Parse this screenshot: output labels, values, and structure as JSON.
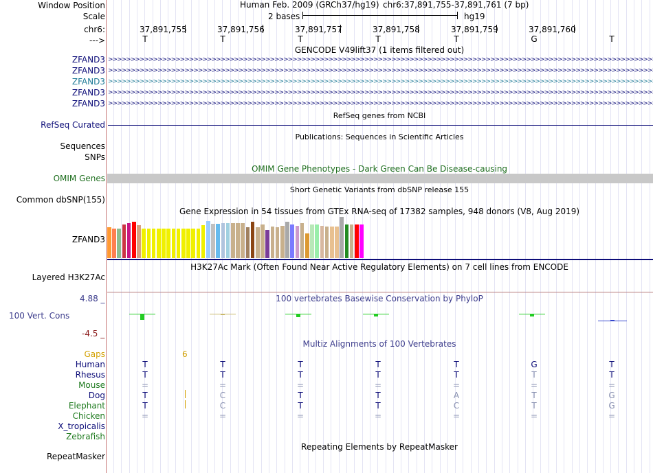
{
  "header": {
    "window_position_label": "Window Position",
    "scale_label": "Scale",
    "chr_label": "chr6:",
    "strand_label": "--->",
    "assembly_title": "Human Feb. 2009 (GRCh37/hg19)",
    "position": "chr6:37,891,755-37,891,761 (7 bp)",
    "scale_text": "2 bases",
    "db": "hg19"
  },
  "ruler": {
    "coords": [
      "37,891,755",
      "37,891,756",
      "37,891,757",
      "37,891,758",
      "37,891,759",
      "37,891,760"
    ]
  },
  "sequence": [
    "T",
    "T",
    "T",
    "T",
    "T",
    "G",
    "T"
  ],
  "tracks": {
    "gencode": {
      "title": "GENCODE V49lift37 (1 items filtered out)",
      "items": [
        "ZFAND3",
        "ZFAND3",
        "ZFAND3",
        "ZFAND3",
        "ZFAND3"
      ],
      "colors": [
        "#0c0c78",
        "#0c0c78",
        "#1e7a96",
        "#0c0c78",
        "#0c0c78"
      ]
    },
    "refseq": {
      "title": "RefSeq genes from NCBI",
      "label": "RefSeq Curated"
    },
    "publications": {
      "title": "Publications: Sequences in Scientific Articles",
      "labels": [
        "Sequences",
        "SNPs"
      ]
    },
    "omim": {
      "title": "OMIM Gene Phenotypes - Dark Green Can Be Disease-causing",
      "label": "OMIM Genes"
    },
    "dbsnp": {
      "title": "Short Genetic Variants from dbSNP release 155",
      "label": "Common dbSNP(155)"
    },
    "gtex": {
      "title": "Gene Expression in 54 tissues from GTEx RNA-seq of 17382 samples, 948 donors (V8, Aug 2019)",
      "label": "ZFAND3"
    },
    "h3k27ac": {
      "title": "H3K27Ac Mark (Often Found Near Active Regulatory Elements) on 7 cell lines from ENCODE",
      "label": "Layered H3K27Ac"
    },
    "phylop": {
      "title": "100 vertebrates Basewise Conservation by PhyloP",
      "label": "100 Vert. Cons",
      "max": "4.88 _",
      "min": "-4.5 _"
    },
    "multiz": {
      "title": "Multiz Alignments of 100 Vertebrates",
      "gaps_label": "Gaps",
      "gap_count": "6",
      "species": [
        {
          "name": "Human",
          "color": "#0c0c78",
          "bases": [
            "T",
            "T",
            "T",
            "T",
            "T",
            "G",
            "T"
          ]
        },
        {
          "name": "Rhesus",
          "color": "#0c0c78",
          "bases": [
            "T",
            "T",
            "T",
            "T",
            "T",
            "T",
            "T"
          ]
        },
        {
          "name": "Mouse",
          "color": "#1e7a1e",
          "bases": [
            "=",
            "=",
            "=",
            "=",
            "=",
            "=",
            "="
          ]
        },
        {
          "name": "Dog",
          "color": "#0c0c78",
          "bases": [
            "T",
            "C",
            "T",
            "T",
            "A",
            "T",
            "G"
          ]
        },
        {
          "name": "Elephant",
          "color": "#1e7a1e",
          "bases": [
            "T",
            "C",
            "T",
            "T",
            "C",
            "T",
            "G"
          ]
        },
        {
          "name": "Chicken",
          "color": "#1e7a1e",
          "bases": [
            "=",
            "=",
            "=",
            "=",
            "=",
            "=",
            "="
          ]
        },
        {
          "name": "X_tropicalis",
          "color": "#0c0c78",
          "bases": [
            "",
            "",
            "",
            "",
            "",
            "",
            ""
          ]
        },
        {
          "name": "Zebrafish",
          "color": "#1e7a1e",
          "bases": [
            "",
            "",
            "",
            "",
            "",
            "",
            ""
          ]
        }
      ]
    },
    "repeatmasker": {
      "title": "Repeating Elements by RepeatMasker",
      "label": "RepeatMasker"
    }
  },
  "colors": {
    "label_blue": "#0c0c78",
    "omim_green": "#1e6e1e",
    "phylop_blue": "#3c3c8c",
    "gaps_orange": "#d2a000",
    "divider_red": "#c87878"
  },
  "chart_data": {
    "type": "bar",
    "title": "Gene Expression in 54 tissues from GTEx RNA-seq of 17382 samples, 948 donors (V8, Aug 2019)",
    "colors": [
      "#ff9933",
      "#ff7f50",
      "#8fbc8f",
      "#cc3344",
      "#c71585",
      "#ff0000",
      "#d8a080",
      "#f0f000",
      "#f0f000",
      "#f0f000",
      "#f0f000",
      "#f0f000",
      "#f0f000",
      "#f0f000",
      "#f0f000",
      "#f0f000",
      "#f0f000",
      "#f0f000",
      "#f0f000",
      "#f0f000",
      "#99ccff",
      "#c0c0c0",
      "#66bbee",
      "#b0c4de",
      "#a0d0e0",
      "#c8b08c",
      "#c8b08c",
      "#c8b08c",
      "#a08060",
      "#8b4513",
      "#c8b08c",
      "#c8b08c",
      "#7a3d99",
      "#c8b08c",
      "#c8b08c",
      "#c8b08c",
      "#a9a9a9",
      "#7a7aff",
      "#cc99cc",
      "#c8b08c",
      "#dd9933",
      "#b8e8b8",
      "#99eeaa",
      "#d8b8a0",
      "#c8b08c",
      "#e8c090",
      "#e8c090",
      "#a9a9a9",
      "#228b22",
      "#c8b08c",
      "#ff0000",
      "#ff00ff"
    ],
    "values": [
      0.75,
      0.72,
      0.72,
      0.82,
      0.85,
      0.88,
      0.8,
      0.72,
      0.72,
      0.72,
      0.72,
      0.72,
      0.72,
      0.72,
      0.72,
      0.72,
      0.72,
      0.72,
      0.72,
      0.8,
      0.9,
      0.83,
      0.83,
      0.85,
      0.85,
      0.85,
      0.85,
      0.85,
      0.75,
      0.88,
      0.75,
      0.82,
      0.68,
      0.76,
      0.75,
      0.78,
      0.88,
      0.82,
      0.78,
      0.85,
      0.6,
      0.82,
      0.82,
      0.78,
      0.76,
      0.76,
      0.76,
      1.0,
      0.82,
      0.82,
      0.82,
      0.82
    ]
  }
}
